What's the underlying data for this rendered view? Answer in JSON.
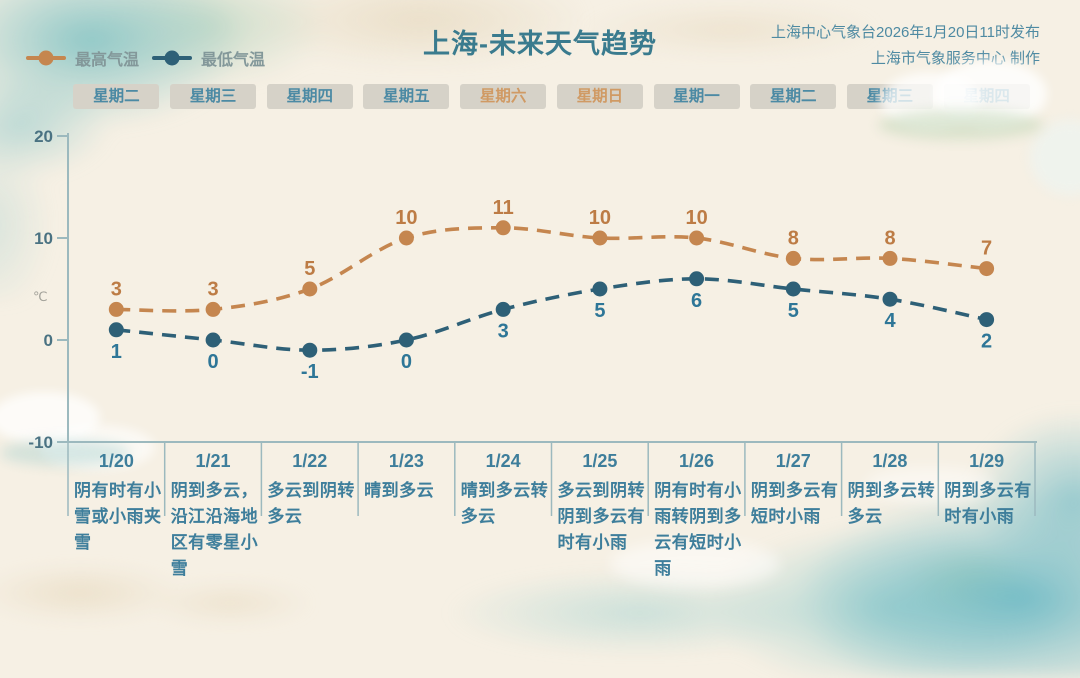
{
  "header": {
    "title": "上海-未来天气趋势",
    "issued_by": "上海中心气象台2026年1月20日11时发布",
    "produced_by": "上海市气象服务中心 制作"
  },
  "colors": {
    "background": "#f6f0e4",
    "title": "#3a7b8e",
    "source_text": "#4e8aa2",
    "teal_text": "#3e7e9b",
    "weekday_text": "#4c8aa4",
    "weekend_text": "#d09a64",
    "weekday_box_bg": "#d6d2c8",
    "axis": "#9cb9be",
    "tick_label": "#4a7282",
    "unit_label": "#a3a29a",
    "high_series": "#c5864f",
    "high_value_label": "#bd7c45",
    "low_series": "#2e6077",
    "low_value_label": "#2e7697"
  },
  "chart_data": {
    "type": "line",
    "title": "上海-未来天气趋势",
    "line_style": "dashed",
    "grid": false,
    "legend_position": "top-left",
    "ylabel": "℃",
    "ylim": [
      -10,
      20
    ],
    "yticks": [
      20,
      10,
      0,
      -10
    ],
    "categories": [
      "1/20",
      "1/21",
      "1/22",
      "1/23",
      "1/24",
      "1/25",
      "1/26",
      "1/27",
      "1/28",
      "1/29"
    ],
    "weekdays": [
      "星期二",
      "星期三",
      "星期四",
      "星期五",
      "星期六",
      "星期日",
      "星期一",
      "星期二",
      "星期三",
      "星期四"
    ],
    "weekend": [
      false,
      false,
      false,
      false,
      true,
      true,
      false,
      false,
      false,
      false
    ],
    "series": [
      {
        "key": "high-temp",
        "name": "最高气温",
        "color": "#c5864f",
        "label_color": "#bd7c45",
        "label_position": "above",
        "values": [
          3,
          3,
          5,
          10,
          11,
          10,
          10,
          8,
          8,
          7
        ]
      },
      {
        "key": "low-temp",
        "name": "最低气温",
        "color": "#2e6077",
        "label_color": "#2e7697",
        "label_position": "below",
        "values": [
          1,
          0,
          -1,
          0,
          3,
          5,
          6,
          5,
          4,
          2
        ]
      }
    ],
    "descriptions": [
      "阴有时有小雪或小雨夹雪",
      "阴到多云，沿江沿海地区有零星小雪",
      "多云到阴转多云",
      "晴到多云",
      "晴到多云转多云",
      "多云到阴转阴到多云有时有小雨",
      "阴有时有小雨转阴到多云有短时小雨",
      "阴到多云有短时小雨",
      "阴到多云转多云",
      "阴到多云有时有小雨"
    ]
  }
}
